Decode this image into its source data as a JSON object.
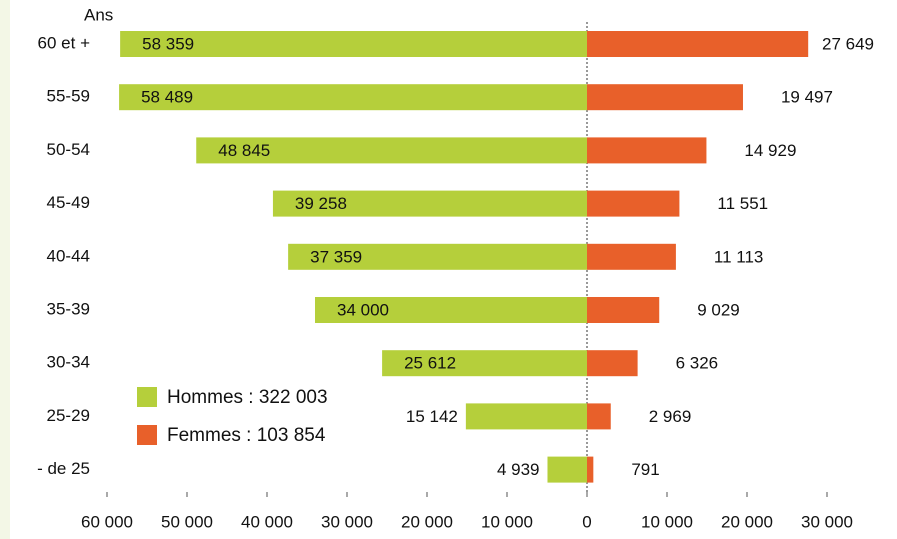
{
  "chart_data": {
    "type": "pyramid",
    "y_label": "Ans",
    "categories": [
      "60 et +",
      "55-59",
      "50-54",
      "45-49",
      "40-44",
      "35-39",
      "30-34",
      "25-29",
      "- de 25"
    ],
    "series": [
      {
        "name": "Hommes : 322 003",
        "color": "#b5cf3b",
        "side": "left",
        "values": [
          58359,
          58489,
          48845,
          39258,
          37359,
          34000,
          25612,
          15142,
          4939
        ],
        "value_labels": [
          "58 359",
          "58 489",
          "48 845",
          "39 258",
          "37 359",
          "34 000",
          "25 612",
          "15 142",
          "4 939"
        ]
      },
      {
        "name": "Femmes : 103 854",
        "color": "#e8602a",
        "side": "right",
        "values": [
          27649,
          19497,
          14929,
          11551,
          11113,
          9029,
          6326,
          2969,
          791
        ],
        "value_labels": [
          "27 649",
          "19 497",
          "14 929",
          "11 551",
          "11 113",
          "9 029",
          "6 326",
          "2 969",
          "791"
        ]
      }
    ],
    "xlim": [
      -60000,
      30000
    ],
    "xticks": [
      {
        "value": -60000,
        "label": "60 000"
      },
      {
        "value": -50000,
        "label": "50 000"
      },
      {
        "value": -40000,
        "label": "40 000"
      },
      {
        "value": -30000,
        "label": "30 000"
      },
      {
        "value": -20000,
        "label": "20 000"
      },
      {
        "value": -10000,
        "label": "10 000"
      },
      0,
      {
        "value": 10000,
        "label": "10 000"
      },
      {
        "value": 20000,
        "label": "20 000"
      },
      {
        "value": 30000,
        "label": "30 000"
      }
    ],
    "legend": "lower-left"
  }
}
